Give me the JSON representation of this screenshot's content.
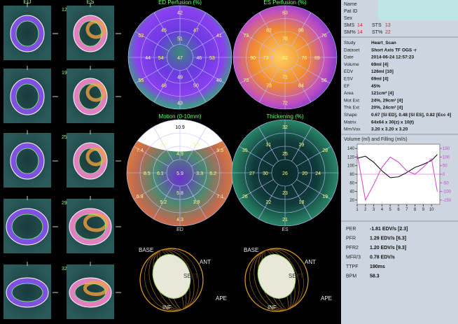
{
  "slices": {
    "top_labels": [
      "ED",
      "ES"
    ],
    "numbers": [
      "12",
      "19",
      "25",
      "29",
      "32"
    ]
  },
  "polar_maps": [
    {
      "title": "ED Perfusion (%)",
      "values": [
        "42",
        "41",
        "40",
        "43",
        "55",
        "52",
        "47",
        "53",
        "50",
        "48",
        "44",
        "45",
        "51",
        "46",
        "49",
        "54",
        "47"
      ]
    },
    {
      "title": "ES Perfusion (%)",
      "values": [
        "63",
        "76",
        "56",
        "72",
        "73",
        "73",
        "88",
        "89",
        "84",
        "73",
        "90",
        "82",
        "78",
        "76",
        "71",
        "73",
        "82"
      ]
    },
    {
      "title": "Motion (0-10mm)",
      "values": [
        "10.9",
        "9.5",
        "7.1",
        "4.3",
        "6.8",
        "7.4",
        "5.5",
        "6.2",
        "3.9",
        "5.2",
        "8.5",
        "6.7",
        "4.9",
        "3.3",
        "5.8",
        "6.1",
        "5.9"
      ]
    },
    {
      "title": "Thickening (%)",
      "values": [
        "32",
        "28",
        "19",
        "21",
        "26",
        "35",
        "29",
        "24",
        "18",
        "22",
        "27",
        "31",
        "25",
        "20",
        "23",
        "30",
        "26"
      ]
    }
  ],
  "polar_labels": [
    "ED",
    "ES"
  ],
  "models": [
    {
      "labels": [
        "BASE",
        "ANT",
        "SEPT",
        "INF",
        "APE"
      ]
    },
    {
      "labels": [
        "BASE",
        "ANT",
        "SEPT",
        "INF",
        "APE"
      ]
    }
  ],
  "patient": {
    "fields": [
      "Name",
      "Pat ID",
      "Sex"
    ],
    "scores": [
      [
        {
          "label": "SMS",
          "value": "14"
        },
        {
          "label": "STS",
          "value": "13"
        }
      ],
      [
        {
          "label": "SM%",
          "value": "14"
        },
        {
          "label": "ST%",
          "value": "22"
        }
      ]
    ]
  },
  "info": [
    [
      "Study",
      "Heart_Scan"
    ],
    [
      "Dataset",
      "Short Axis TF OGS -r"
    ],
    [
      "Date",
      "2014-06-24 12:57:23"
    ],
    [
      "Volume",
      "69ml [4]"
    ],
    [
      "EDV",
      "126ml [10]"
    ],
    [
      "ESV",
      "69ml [4]"
    ],
    [
      "EF",
      "45%"
    ],
    [
      "Area",
      "121cm² [4]"
    ],
    [
      "Mot Ext",
      "24%, 29cm² [4]"
    ],
    [
      "Thk Ext",
      "20%, 24cm² [4]"
    ],
    [
      "Shape",
      "0.67 [SI ED], 0.48 [SI ES], 0.82 [Ecc 4]"
    ],
    [
      "Matrix",
      "64x64 x 30(z) x 10(t)"
    ],
    [
      "Mm/Vox",
      "3.20 x 3.20 x 3.20"
    ]
  ],
  "chart_data": {
    "type": "line",
    "title": "Volume (ml) and Filling (ml/s)",
    "x": [
      1,
      2,
      3,
      4,
      5,
      6,
      7,
      8,
      9,
      10,
      10.7
    ],
    "series": [
      {
        "color": "#000000",
        "values": [
          117,
          122,
          108,
          88,
          72,
          74,
          84,
          96,
          103,
          112,
          126
        ]
      },
      {
        "color": "#cc44cc",
        "axis": "y2",
        "values": [
          120,
          -150,
          -60,
          40,
          100,
          70,
          20,
          0,
          40,
          90,
          -100
        ]
      }
    ],
    "xlim": [
      1,
      11
    ],
    "xticks": [
      1,
      2,
      3,
      4,
      5,
      6,
      7,
      8,
      9,
      10
    ],
    "ylim": [
      10,
      150
    ],
    "yticks": [
      20,
      40,
      60,
      80,
      100,
      120,
      140
    ],
    "y2lim": [
      -175,
      175
    ],
    "y2ticks": [
      -150,
      -100,
      -50,
      0,
      50,
      100,
      150
    ]
  },
  "filling": [
    [
      "PER",
      "-1.81 EDV/s [2.3]"
    ],
    [
      "PFR",
      "1.29 EDV/s [6.3]"
    ],
    [
      "PFR2",
      "1.20 EDV/s [9.3]"
    ],
    [
      "MFR/3",
      "0.78 EDV/s"
    ],
    [
      "TTPF",
      "190ms"
    ],
    [
      "BPM",
      "58.3"
    ]
  ]
}
